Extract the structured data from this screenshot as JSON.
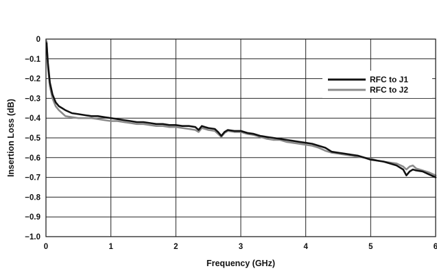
{
  "chart_data": {
    "type": "line",
    "title": "",
    "xlabel": "Frequency (GHz)",
    "ylabel": "Insertion Loss (dB)",
    "xlim": [
      0,
      6
    ],
    "ylim": [
      -1.0,
      0
    ],
    "xticks": [
      0,
      1,
      2,
      3,
      4,
      5,
      6
    ],
    "yticks": [
      0,
      -0.1,
      -0.2,
      -0.3,
      -0.4,
      -0.5,
      -0.6,
      -0.7,
      -0.8,
      -0.9,
      -1.0
    ],
    "xtick_labels": [
      "0",
      "1",
      "2",
      "3",
      "4",
      "5",
      "6"
    ],
    "ytick_labels": [
      "0",
      "−0.1",
      "−0.2",
      "−0.3",
      "−0.4",
      "−0.5",
      "−0.6",
      "−0.7",
      "−0.8",
      "−0.9",
      "−1.0"
    ],
    "grid": true,
    "legend_position": "top-right",
    "series": [
      {
        "name": "RFC to J1",
        "color": "#111111",
        "x": [
          0.01,
          0.03,
          0.06,
          0.1,
          0.15,
          0.2,
          0.25,
          0.3,
          0.4,
          0.5,
          0.6,
          0.7,
          0.8,
          0.9,
          1.0,
          1.1,
          1.2,
          1.3,
          1.4,
          1.5,
          1.6,
          1.7,
          1.8,
          1.9,
          2.0,
          2.1,
          2.2,
          2.3,
          2.35,
          2.4,
          2.45,
          2.5,
          2.6,
          2.65,
          2.7,
          2.75,
          2.8,
          2.9,
          3.0,
          3.1,
          3.2,
          3.3,
          3.4,
          3.5,
          3.6,
          3.7,
          3.8,
          3.9,
          4.0,
          4.1,
          4.2,
          4.3,
          4.4,
          4.5,
          4.6,
          4.7,
          4.8,
          4.9,
          5.0,
          5.1,
          5.2,
          5.3,
          5.4,
          5.5,
          5.55,
          5.6,
          5.65,
          5.7,
          5.8,
          5.9,
          6.0
        ],
        "y": [
          -0.02,
          -0.12,
          -0.22,
          -0.28,
          -0.32,
          -0.34,
          -0.35,
          -0.36,
          -0.375,
          -0.38,
          -0.385,
          -0.39,
          -0.39,
          -0.395,
          -0.4,
          -0.405,
          -0.41,
          -0.415,
          -0.42,
          -0.42,
          -0.425,
          -0.43,
          -0.43,
          -0.435,
          -0.435,
          -0.44,
          -0.44,
          -0.445,
          -0.46,
          -0.44,
          -0.445,
          -0.45,
          -0.455,
          -0.47,
          -0.49,
          -0.47,
          -0.46,
          -0.465,
          -0.465,
          -0.475,
          -0.48,
          -0.49,
          -0.495,
          -0.5,
          -0.505,
          -0.51,
          -0.515,
          -0.52,
          -0.525,
          -0.53,
          -0.54,
          -0.55,
          -0.57,
          -0.575,
          -0.58,
          -0.585,
          -0.59,
          -0.6,
          -0.61,
          -0.615,
          -0.62,
          -0.63,
          -0.64,
          -0.66,
          -0.69,
          -0.67,
          -0.66,
          -0.665,
          -0.67,
          -0.685,
          -0.7
        ]
      },
      {
        "name": "RFC to J2",
        "color": "#8a8a8a",
        "x": [
          0.01,
          0.03,
          0.06,
          0.1,
          0.15,
          0.2,
          0.25,
          0.3,
          0.4,
          0.5,
          0.6,
          0.7,
          0.8,
          0.9,
          1.0,
          1.1,
          1.2,
          1.3,
          1.4,
          1.5,
          1.6,
          1.7,
          1.8,
          1.9,
          2.0,
          2.1,
          2.2,
          2.3,
          2.35,
          2.4,
          2.45,
          2.5,
          2.6,
          2.65,
          2.7,
          2.75,
          2.8,
          2.9,
          3.0,
          3.1,
          3.2,
          3.3,
          3.4,
          3.5,
          3.6,
          3.7,
          3.8,
          3.9,
          4.0,
          4.1,
          4.2,
          4.3,
          4.4,
          4.5,
          4.6,
          4.7,
          4.8,
          4.9,
          5.0,
          5.1,
          5.2,
          5.3,
          5.4,
          5.5,
          5.55,
          5.6,
          5.65,
          5.7,
          5.8,
          5.9,
          6.0
        ],
        "y": [
          -0.01,
          -0.14,
          -0.24,
          -0.3,
          -0.34,
          -0.36,
          -0.375,
          -0.39,
          -0.395,
          -0.4,
          -0.4,
          -0.4,
          -0.405,
          -0.41,
          -0.415,
          -0.415,
          -0.42,
          -0.425,
          -0.43,
          -0.43,
          -0.435,
          -0.44,
          -0.44,
          -0.445,
          -0.445,
          -0.45,
          -0.455,
          -0.46,
          -0.47,
          -0.45,
          -0.455,
          -0.46,
          -0.465,
          -0.48,
          -0.495,
          -0.475,
          -0.465,
          -0.47,
          -0.47,
          -0.48,
          -0.485,
          -0.495,
          -0.505,
          -0.51,
          -0.51,
          -0.52,
          -0.525,
          -0.53,
          -0.535,
          -0.54,
          -0.55,
          -0.565,
          -0.575,
          -0.58,
          -0.585,
          -0.59,
          -0.595,
          -0.6,
          -0.605,
          -0.615,
          -0.62,
          -0.625,
          -0.63,
          -0.645,
          -0.66,
          -0.645,
          -0.64,
          -0.655,
          -0.665,
          -0.675,
          -0.69
        ]
      }
    ]
  }
}
